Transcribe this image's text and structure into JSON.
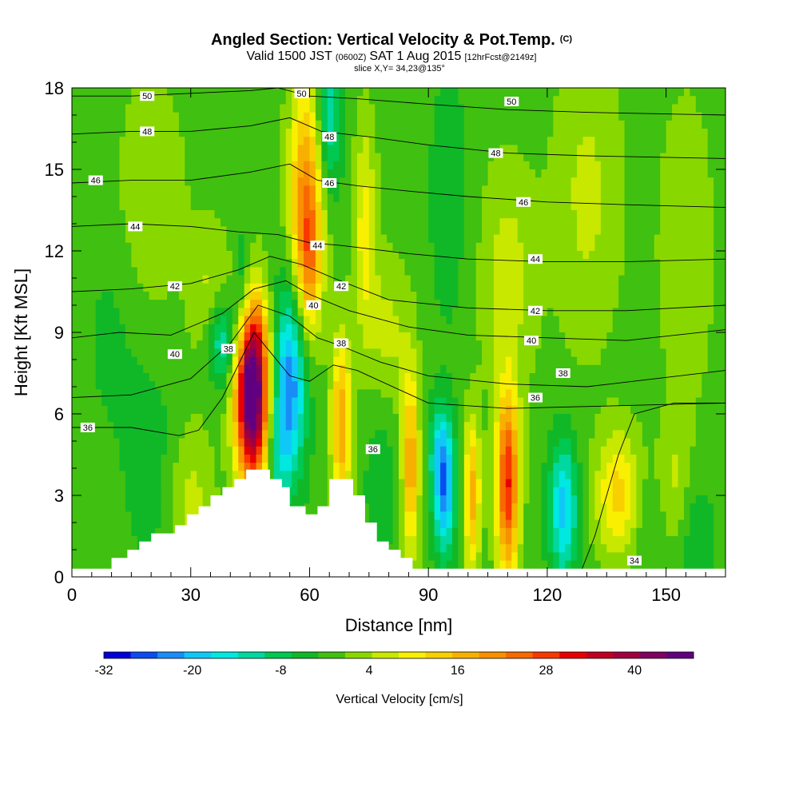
{
  "chart_data": {
    "type": "heatmap",
    "title": "Angled Section: Vertical Velocity & Pot.Temp.",
    "title_suffix": "(C)",
    "subtitle_parts": [
      "Valid 1500 JST",
      "(0600Z)",
      "SAT 1 Aug 2015",
      "[12hrFcst@2149z]"
    ],
    "slice_text": "slice X,Y= 34,23@135°",
    "xlabel": "Distance [nm]",
    "ylabel": "Height [Kft MSL]",
    "xlim": [
      0,
      165
    ],
    "ylim": [
      0,
      18
    ],
    "xticks": [
      0,
      30,
      60,
      90,
      120,
      150
    ],
    "yticks": [
      0,
      3,
      6,
      9,
      12,
      15,
      18
    ],
    "colorbar": {
      "title": "Vertical Velocity [cm/s]",
      "tick_labels": [
        -32,
        -20,
        -8,
        4,
        16,
        28,
        40
      ],
      "range": [
        -32,
        48
      ],
      "step": 4,
      "colors": [
        "#0000d8",
        "#0a4cf0",
        "#1a8cf8",
        "#10c8f8",
        "#00e8e0",
        "#00d8a0",
        "#00c850",
        "#10b828",
        "#40c010",
        "#88d800",
        "#c8e800",
        "#f8f000",
        "#f8d000",
        "#f8b000",
        "#f89000",
        "#f86800",
        "#f83800",
        "#e80000",
        "#c00020",
        "#a00040",
        "#800060",
        "#600080"
      ]
    },
    "background_w": 2,
    "velocity_features": [
      {
        "x": 45.5,
        "y": 6.4,
        "sx": 2.8,
        "sy": 2.3,
        "w": 46
      },
      {
        "x": 45.5,
        "y": 7.8,
        "sx": 3.5,
        "sy": 2.0,
        "w": 18
      },
      {
        "x": 55,
        "y": 7.2,
        "sx": 3.0,
        "sy": 2.5,
        "w": -26
      },
      {
        "x": 38,
        "y": 8.6,
        "sx": 3.0,
        "sy": 1.2,
        "w": -18
      },
      {
        "x": 59,
        "y": 13.8,
        "sx": 3.0,
        "sy": 3.2,
        "w": 24
      },
      {
        "x": 60,
        "y": 11.5,
        "sx": 2.0,
        "sy": 1.8,
        "w": 12
      },
      {
        "x": 65,
        "y": 16.8,
        "sx": 2.2,
        "sy": 1.8,
        "w": -14
      },
      {
        "x": 68,
        "y": 5.6,
        "sx": 1.8,
        "sy": 2.3,
        "w": 22
      },
      {
        "x": 74,
        "y": 12.8,
        "sx": 2.0,
        "sy": 2.8,
        "w": 12
      },
      {
        "x": 43,
        "y": 10.5,
        "sx": 1.5,
        "sy": 1.5,
        "w": -10
      },
      {
        "x": 35,
        "y": 10.0,
        "sx": 3.5,
        "sy": 2.0,
        "w": 8
      },
      {
        "x": 85.5,
        "y": 4.2,
        "sx": 1.5,
        "sy": 2.4,
        "w": 22
      },
      {
        "x": 94,
        "y": 3.0,
        "sx": 2.0,
        "sy": 1.6,
        "w": -22
      },
      {
        "x": 93,
        "y": 4.8,
        "sx": 2.0,
        "sy": 1.2,
        "w": -12
      },
      {
        "x": 101,
        "y": 3.0,
        "sx": 1.5,
        "sy": 2.0,
        "w": 20
      },
      {
        "x": 110,
        "y": 3.4,
        "sx": 2.0,
        "sy": 2.4,
        "w": 34
      },
      {
        "x": 124,
        "y": 2.5,
        "sx": 2.5,
        "sy": 1.8,
        "w": -20
      },
      {
        "x": 138,
        "y": 3.0,
        "sx": 4.0,
        "sy": 1.6,
        "w": 16
      },
      {
        "x": 145,
        "y": 2.0,
        "sx": 3.0,
        "sy": 1.5,
        "w": -4
      },
      {
        "x": 152,
        "y": 3.5,
        "sx": 3.0,
        "sy": 1.5,
        "w": 6
      },
      {
        "x": 158,
        "y": 1.5,
        "sx": 3.0,
        "sy": 1.5,
        "w": -6
      },
      {
        "x": 30,
        "y": 2.5,
        "sx": 4.0,
        "sy": 2.0,
        "w": 8
      },
      {
        "x": 20,
        "y": 4.0,
        "sx": 5.0,
        "sy": 3.0,
        "w": -4
      },
      {
        "x": 110,
        "y": 11.0,
        "sx": 5.0,
        "sy": 3.0,
        "w": 8
      },
      {
        "x": 130,
        "y": 14.0,
        "sx": 6.0,
        "sy": 4.0,
        "w": 7
      },
      {
        "x": 95,
        "y": 14.0,
        "sx": 4.0,
        "sy": 4.0,
        "w": -4
      },
      {
        "x": 20,
        "y": 14.0,
        "sx": 6.0,
        "sy": 3.0,
        "w": 6
      },
      {
        "x": 10,
        "y": 9.0,
        "sx": 5.0,
        "sy": 3.0,
        "w": -3
      },
      {
        "x": 155,
        "y": 12.0,
        "sx": 6.0,
        "sy": 5.0,
        "w": 4
      },
      {
        "x": 80,
        "y": 9.0,
        "sx": 4.0,
        "sy": 2.0,
        "w": 7
      },
      {
        "x": 78,
        "y": 3.5,
        "sx": 3.0,
        "sy": 2.0,
        "w": -5
      },
      {
        "x": 52,
        "y": 4.5,
        "sx": 2.0,
        "sy": 1.5,
        "w": -8
      }
    ],
    "terrain": [
      [
        0,
        0.3
      ],
      [
        10,
        0.3
      ],
      [
        10,
        0.7
      ],
      [
        14,
        0.7
      ],
      [
        14,
        1.0
      ],
      [
        17,
        1.0
      ],
      [
        17,
        1.3
      ],
      [
        20,
        1.3
      ],
      [
        20,
        1.6
      ],
      [
        26,
        1.6
      ],
      [
        26,
        1.9
      ],
      [
        29,
        1.9
      ],
      [
        29,
        2.3
      ],
      [
        32,
        2.3
      ],
      [
        32,
        2.6
      ],
      [
        35,
        2.6
      ],
      [
        35,
        3.0
      ],
      [
        38,
        3.0
      ],
      [
        38,
        3.3
      ],
      [
        41,
        3.3
      ],
      [
        41,
        3.6
      ],
      [
        44,
        3.6
      ],
      [
        44,
        3.95
      ],
      [
        50,
        3.95
      ],
      [
        50,
        3.6
      ],
      [
        53,
        3.6
      ],
      [
        53,
        3.3
      ],
      [
        55,
        3.3
      ],
      [
        55,
        2.6
      ],
      [
        59,
        2.6
      ],
      [
        59,
        2.3
      ],
      [
        62,
        2.3
      ],
      [
        62,
        2.6
      ],
      [
        65,
        2.6
      ],
      [
        65,
        3.6
      ],
      [
        71,
        3.6
      ],
      [
        71,
        3.0
      ],
      [
        74,
        3.0
      ],
      [
        74,
        2.0
      ],
      [
        77,
        2.0
      ],
      [
        77,
        1.3
      ],
      [
        80,
        1.3
      ],
      [
        80,
        1.0
      ],
      [
        83,
        1.0
      ],
      [
        83,
        0.7
      ],
      [
        86,
        0.7
      ],
      [
        86,
        0.3
      ],
      [
        165,
        0.3
      ]
    ],
    "isotherms": [
      {
        "label": "34",
        "pts": [
          [
            128,
            0
          ],
          [
            132,
            1.5
          ],
          [
            135,
            3
          ],
          [
            138,
            4.5
          ],
          [
            142,
            6.0
          ],
          [
            152,
            6.4
          ],
          [
            165,
            6.4
          ]
        ]
      },
      {
        "label": "36",
        "pts": [
          [
            0,
            5.5
          ],
          [
            15,
            5.5
          ],
          [
            27,
            5.2
          ],
          [
            32,
            5.4
          ],
          [
            38,
            6.6
          ],
          [
            46,
            9.0
          ],
          [
            55,
            7.4
          ],
          [
            60,
            7.2
          ],
          [
            66,
            7.8
          ],
          [
            72,
            7.6
          ],
          [
            90,
            6.4
          ],
          [
            110,
            6.2
          ],
          [
            165,
            6.4
          ]
        ]
      },
      {
        "label": "38",
        "pts": [
          [
            0,
            6.6
          ],
          [
            15,
            6.7
          ],
          [
            30,
            7.3
          ],
          [
            40,
            8.6
          ],
          [
            47,
            10.0
          ],
          [
            55,
            9.6
          ],
          [
            62,
            8.8
          ],
          [
            68,
            8.5
          ],
          [
            78,
            7.9
          ],
          [
            90,
            7.4
          ],
          [
            110,
            7.1
          ],
          [
            130,
            7.0
          ],
          [
            165,
            7.6
          ]
        ]
      },
      {
        "label": "40",
        "pts": [
          [
            0,
            8.8
          ],
          [
            12,
            9.0
          ],
          [
            25,
            8.9
          ],
          [
            38,
            9.7
          ],
          [
            46,
            10.6
          ],
          [
            54,
            10.9
          ],
          [
            60,
            10.4
          ],
          [
            70,
            9.8
          ],
          [
            85,
            9.2
          ],
          [
            100,
            8.9
          ],
          [
            120,
            8.8
          ],
          [
            140,
            8.7
          ],
          [
            165,
            9.1
          ]
        ]
      },
      {
        "label": "42",
        "pts": [
          [
            0,
            10.5
          ],
          [
            15,
            10.6
          ],
          [
            30,
            10.8
          ],
          [
            42,
            11.3
          ],
          [
            50,
            11.8
          ],
          [
            58,
            11.5
          ],
          [
            66,
            11.0
          ],
          [
            80,
            10.2
          ],
          [
            100,
            9.9
          ],
          [
            120,
            9.8
          ],
          [
            140,
            9.8
          ],
          [
            165,
            10.0
          ]
        ]
      },
      {
        "label": "44",
        "pts": [
          [
            0,
            12.9
          ],
          [
            15,
            13.0
          ],
          [
            30,
            12.9
          ],
          [
            42,
            12.7
          ],
          [
            52,
            12.6
          ],
          [
            60,
            12.3
          ],
          [
            68,
            12.2
          ],
          [
            85,
            11.9
          ],
          [
            100,
            11.7
          ],
          [
            120,
            11.6
          ],
          [
            140,
            11.6
          ],
          [
            165,
            11.7
          ]
        ]
      },
      {
        "label": "46",
        "pts": [
          [
            0,
            14.5
          ],
          [
            15,
            14.6
          ],
          [
            30,
            14.6
          ],
          [
            45,
            14.9
          ],
          [
            55,
            15.2
          ],
          [
            62,
            14.6
          ],
          [
            72,
            14.4
          ],
          [
            85,
            14.2
          ],
          [
            100,
            14.0
          ],
          [
            120,
            13.8
          ],
          [
            140,
            13.7
          ],
          [
            165,
            13.6
          ]
        ]
      },
      {
        "label": "48",
        "pts": [
          [
            0,
            16.3
          ],
          [
            15,
            16.4
          ],
          [
            30,
            16.4
          ],
          [
            45,
            16.6
          ],
          [
            55,
            16.9
          ],
          [
            63,
            16.4
          ],
          [
            75,
            16.2
          ],
          [
            90,
            15.9
          ],
          [
            110,
            15.6
          ],
          [
            130,
            15.5
          ],
          [
            165,
            15.4
          ]
        ]
      },
      {
        "label": "50",
        "pts": [
          [
            0,
            17.7
          ],
          [
            15,
            17.7
          ],
          [
            30,
            17.8
          ],
          [
            45,
            17.9
          ],
          [
            52,
            18.0
          ],
          [
            60,
            17.7
          ],
          [
            72,
            17.6
          ],
          [
            90,
            17.4
          ],
          [
            110,
            17.2
          ],
          [
            130,
            17.1
          ],
          [
            165,
            17.0
          ]
        ]
      }
    ],
    "isotherm_labels": [
      {
        "label": "34",
        "x": 142,
        "y": 0.6
      },
      {
        "label": "36",
        "x": 4,
        "y": 5.5
      },
      {
        "label": "36",
        "x": 76,
        "y": 4.7
      },
      {
        "label": "36",
        "x": 117,
        "y": 6.6
      },
      {
        "label": "38",
        "x": 39.5,
        "y": 8.4
      },
      {
        "label": "38",
        "x": 68,
        "y": 8.6
      },
      {
        "label": "38",
        "x": 124,
        "y": 7.5
      },
      {
        "label": "40",
        "x": 26,
        "y": 8.2
      },
      {
        "label": "40",
        "x": 61,
        "y": 10.0
      },
      {
        "label": "40",
        "x": 116,
        "y": 8.7
      },
      {
        "label": "42",
        "x": 26,
        "y": 10.7
      },
      {
        "label": "42",
        "x": 68,
        "y": 10.7
      },
      {
        "label": "42",
        "x": 117,
        "y": 9.8
      },
      {
        "label": "44",
        "x": 16,
        "y": 12.9
      },
      {
        "label": "44",
        "x": 62,
        "y": 12.2
      },
      {
        "label": "44",
        "x": 117,
        "y": 11.7
      },
      {
        "label": "46",
        "x": 6,
        "y": 14.6
      },
      {
        "label": "46",
        "x": 65,
        "y": 14.5
      },
      {
        "label": "46",
        "x": 114,
        "y": 13.8
      },
      {
        "label": "48",
        "x": 19,
        "y": 16.4
      },
      {
        "label": "48",
        "x": 65,
        "y": 16.2
      },
      {
        "label": "48",
        "x": 107,
        "y": 15.6
      },
      {
        "label": "50",
        "x": 19,
        "y": 17.7
      },
      {
        "label": "50",
        "x": 58,
        "y": 17.8
      },
      {
        "label": "50",
        "x": 111,
        "y": 17.5
      }
    ]
  }
}
